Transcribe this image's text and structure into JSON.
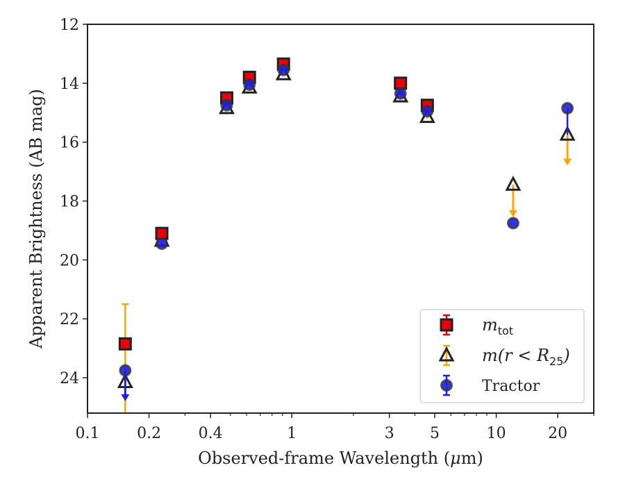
{
  "chart_data": {
    "type": "scatter",
    "title": "",
    "xlabel": "Observed-frame Wavelength (",
    "xlabel_unit_mu": "μ",
    "xlabel_unit_rest": "m)",
    "ylabel": "Apparent Brightness (AB mag)",
    "x_scale": "log",
    "xlim": [
      0.1,
      30
    ],
    "ylim": [
      25.2,
      12
    ],
    "y_inverted": true,
    "grid": false,
    "legend_position": "lower-right",
    "x_ticks": [
      {
        "value": 0.1,
        "label": "0.1"
      },
      {
        "value": 0.2,
        "label": "0.2"
      },
      {
        "value": 0.4,
        "label": "0.4"
      },
      {
        "value": 1,
        "label": "1"
      },
      {
        "value": 3,
        "label": "3"
      },
      {
        "value": 5,
        "label": "5"
      },
      {
        "value": 10,
        "label": "10"
      },
      {
        "value": 20,
        "label": "20"
      }
    ],
    "y_ticks": [
      {
        "value": 12,
        "label": "12"
      },
      {
        "value": 14,
        "label": "14"
      },
      {
        "value": 16,
        "label": "16"
      },
      {
        "value": 18,
        "label": "18"
      },
      {
        "value": 20,
        "label": "20"
      },
      {
        "value": 22,
        "label": "22"
      },
      {
        "value": 24,
        "label": "24"
      }
    ],
    "series": [
      {
        "name": "m_tot",
        "legend_base": "m",
        "legend_sub": "tot",
        "marker": "square",
        "fill": "#e8000b",
        "edge": "#222222",
        "errcolor": "#e8000b",
        "points": [
          {
            "x": 0.153,
            "y": 22.85,
            "err_up": 0,
            "err_down": 0
          },
          {
            "x": 0.231,
            "y": 19.1,
            "err_up": 0.1,
            "err_down": 0.1
          },
          {
            "x": 0.48,
            "y": 14.5,
            "err_up": 0.05,
            "err_down": 0.05
          },
          {
            "x": 0.62,
            "y": 13.8,
            "err_up": 0.05,
            "err_down": 0.05
          },
          {
            "x": 0.91,
            "y": 13.35,
            "err_up": 0.05,
            "err_down": 0.05
          },
          {
            "x": 3.4,
            "y": 14.0,
            "err_up": 0.05,
            "err_down": 0.05
          },
          {
            "x": 4.6,
            "y": 14.75,
            "err_up": 0.05,
            "err_down": 0.05
          }
        ]
      },
      {
        "name": "m(r < R25)",
        "legend_base": "m(r < R",
        "legend_sub": "25",
        "legend_close": ")",
        "marker": "triangle",
        "fill": "none",
        "edge": "#222222",
        "errcolor": "#ffa500",
        "points": [
          {
            "x": 0.153,
            "y": 24.15,
            "err_up": 2.65,
            "err_down": 1.05,
            "upper_limit": false
          },
          {
            "x": 0.231,
            "y": 19.35,
            "err_up": 0.1,
            "err_down": 0.1
          },
          {
            "x": 0.48,
            "y": 14.85,
            "err_up": 0.05,
            "err_down": 0.05
          },
          {
            "x": 0.62,
            "y": 14.15,
            "err_up": 0.05,
            "err_down": 0.05
          },
          {
            "x": 0.91,
            "y": 13.7,
            "err_up": 0.05,
            "err_down": 0.05
          },
          {
            "x": 3.4,
            "y": 14.45,
            "err_up": 0.05,
            "err_down": 0.05
          },
          {
            "x": 4.6,
            "y": 15.15,
            "err_up": 0.05,
            "err_down": 0.05
          },
          {
            "x": 12.1,
            "y": 17.45,
            "err_up": 0,
            "err_down": 0,
            "upper_limit": true,
            "limit_to": 18.5
          },
          {
            "x": 22.3,
            "y": 15.75,
            "err_up": 0,
            "err_down": 0,
            "upper_limit": true,
            "limit_to": 16.75
          }
        ]
      },
      {
        "name": "Tractor",
        "marker": "circle",
        "fill": "#1f1fdd",
        "edge": "#333333",
        "errcolor": "#1f1fdd",
        "points": [
          {
            "x": 0.153,
            "y": 23.75,
            "err_up": 0,
            "err_down": 0,
            "upper_limit": true,
            "limit_to": 24.75
          },
          {
            "x": 0.231,
            "y": 19.45,
            "err_up": 0.05,
            "err_down": 0.05
          },
          {
            "x": 0.48,
            "y": 14.75,
            "err_up": 0.05,
            "err_down": 0.05
          },
          {
            "x": 0.62,
            "y": 14.05,
            "err_up": 0.05,
            "err_down": 0.05
          },
          {
            "x": 0.91,
            "y": 13.55,
            "err_up": 0.05,
            "err_down": 0.05
          },
          {
            "x": 3.4,
            "y": 14.35,
            "err_up": 0.05,
            "err_down": 0.05
          },
          {
            "x": 4.6,
            "y": 14.95,
            "err_up": 0.05,
            "err_down": 0.05
          },
          {
            "x": 12.1,
            "y": 18.75,
            "err_up": 0,
            "err_down": 0
          },
          {
            "x": 22.3,
            "y": 14.85,
            "err_up": 0,
            "err_down": 0.9
          }
        ]
      }
    ]
  }
}
